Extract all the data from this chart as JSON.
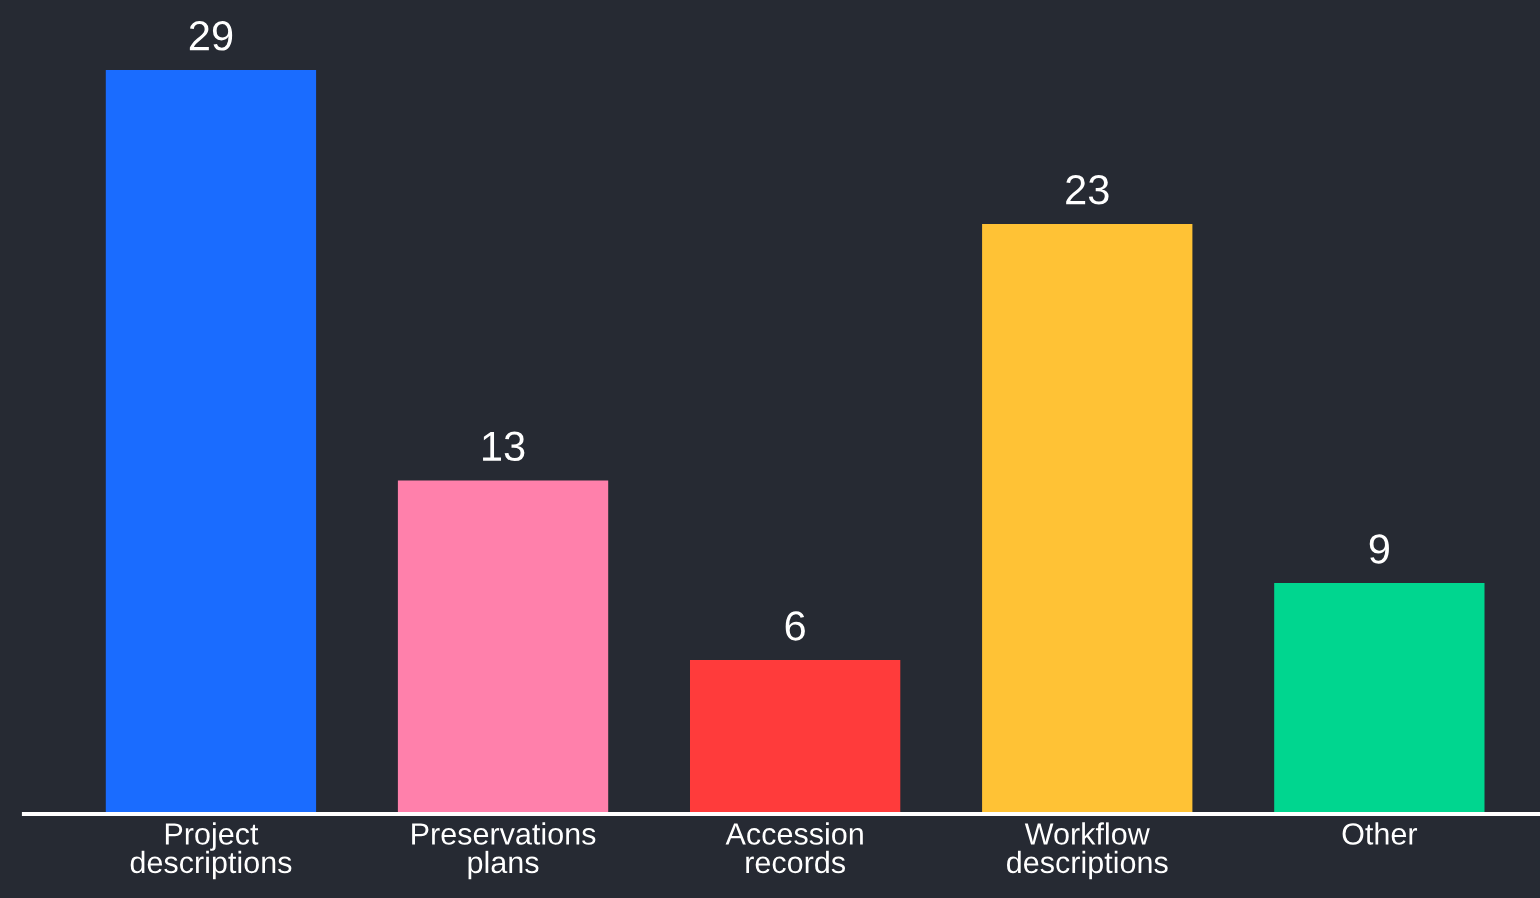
{
  "chart_data": {
    "type": "bar",
    "categories": [
      "Project\ndescriptions",
      "Preservations\nplans",
      "Accession\nrecords",
      "Workflow\ndescriptions",
      "Other"
    ],
    "values": [
      29,
      13,
      6,
      23,
      9
    ],
    "colors": [
      "#1a6cff",
      "#ff80ab",
      "#ff3b3b",
      "#ffc235",
      "#00d68f"
    ],
    "data_labels": true,
    "grid": false,
    "legend": false
  }
}
